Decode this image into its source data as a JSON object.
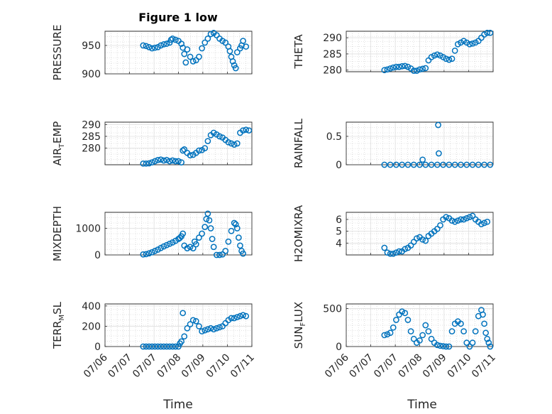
{
  "figure": {
    "title": "Figure 1 low",
    "xlabel": "Time"
  },
  "colors": {
    "marker": "#0072bd",
    "axis": "#262626",
    "grid": "#dfdfdf"
  },
  "chart_data": [
    {
      "type": "scatter",
      "ylabel": "PRESSURE",
      "xticks": [
        "07/06",
        "07/07",
        "07/07",
        "07/08",
        "07/09",
        "07/10",
        "07/11"
      ],
      "yticks": [
        900,
        950
      ],
      "ylim": [
        900,
        975
      ],
      "grid": true,
      "points": [
        [
          1.8,
          950
        ],
        [
          1.9,
          949
        ],
        [
          2.0,
          947
        ],
        [
          2.1,
          945
        ],
        [
          2.2,
          946
        ],
        [
          2.3,
          947
        ],
        [
          2.4,
          950
        ],
        [
          2.5,
          952
        ],
        [
          2.6,
          953
        ],
        [
          2.7,
          955
        ],
        [
          2.75,
          960
        ],
        [
          2.8,
          962
        ],
        [
          2.9,
          960
        ],
        [
          3.0,
          958
        ],
        [
          3.1,
          953
        ],
        [
          3.15,
          946
        ],
        [
          3.2,
          935
        ],
        [
          3.25,
          920
        ],
        [
          3.3,
          943
        ],
        [
          3.4,
          930
        ],
        [
          3.5,
          922
        ],
        [
          3.6,
          924
        ],
        [
          3.7,
          930
        ],
        [
          3.8,
          945
        ],
        [
          3.9,
          955
        ],
        [
          4.0,
          962
        ],
        [
          4.1,
          970
        ],
        [
          4.2,
          972
        ],
        [
          4.3,
          968
        ],
        [
          4.4,
          962
        ],
        [
          4.5,
          958
        ],
        [
          4.6,
          955
        ],
        [
          4.7,
          948
        ],
        [
          4.75,
          940
        ],
        [
          4.8,
          930
        ],
        [
          4.85,
          922
        ],
        [
          4.9,
          915
        ],
        [
          4.95,
          910
        ],
        [
          5.0,
          938
        ],
        [
          5.1,
          945
        ],
        [
          5.15,
          950
        ],
        [
          5.2,
          958
        ],
        [
          5.3,
          948
        ]
      ]
    },
    {
      "type": "scatter",
      "ylabel": "THETA",
      "xticks": [
        "07/06",
        "07/07",
        "07/07",
        "07/08",
        "07/09",
        "07/10",
        "07/11"
      ],
      "yticks": [
        280,
        285,
        290
      ],
      "ylim": [
        279.5,
        292
      ],
      "grid": true,
      "points": [
        [
          1.8,
          280
        ],
        [
          1.9,
          280.2
        ],
        [
          2.0,
          280.5
        ],
        [
          2.1,
          280.8
        ],
        [
          2.2,
          281
        ],
        [
          2.3,
          281
        ],
        [
          2.4,
          281.2
        ],
        [
          2.5,
          281.3
        ],
        [
          2.6,
          281
        ],
        [
          2.7,
          280.5
        ],
        [
          2.8,
          279.8
        ],
        [
          2.9,
          279.8
        ],
        [
          3.0,
          280.2
        ],
        [
          3.1,
          280.4
        ],
        [
          3.2,
          280.6
        ],
        [
          3.3,
          283
        ],
        [
          3.4,
          284
        ],
        [
          3.5,
          284.5
        ],
        [
          3.6,
          284.8
        ],
        [
          3.7,
          284.5
        ],
        [
          3.8,
          284
        ],
        [
          3.9,
          283.5
        ],
        [
          4.0,
          283.2
        ],
        [
          4.1,
          283.5
        ],
        [
          4.2,
          286
        ],
        [
          4.3,
          288
        ],
        [
          4.4,
          288.5
        ],
        [
          4.5,
          289
        ],
        [
          4.6,
          288.5
        ],
        [
          4.7,
          288
        ],
        [
          4.8,
          288.2
        ],
        [
          4.9,
          288.5
        ],
        [
          5.0,
          289
        ],
        [
          5.1,
          290
        ],
        [
          5.2,
          291
        ],
        [
          5.3,
          291.5
        ],
        [
          5.4,
          291.5
        ]
      ]
    },
    {
      "type": "scatter",
      "ylabel": "AIR_TEMP",
      "xticks": [
        "07/06",
        "07/07",
        "07/07",
        "07/08",
        "07/09",
        "07/10",
        "07/11"
      ],
      "yticks": [
        280,
        285,
        290
      ],
      "ylim": [
        273,
        291
      ],
      "grid": true,
      "points": [
        [
          1.8,
          273.5
        ],
        [
          1.9,
          273.5
        ],
        [
          2.0,
          273.6
        ],
        [
          2.1,
          274
        ],
        [
          2.2,
          274.5
        ],
        [
          2.3,
          275
        ],
        [
          2.4,
          275.2
        ],
        [
          2.5,
          274.8
        ],
        [
          2.6,
          275
        ],
        [
          2.7,
          274.5
        ],
        [
          2.8,
          274.8
        ],
        [
          2.9,
          274.5
        ],
        [
          3.0,
          274.5
        ],
        [
          3.1,
          274
        ],
        [
          3.15,
          279
        ],
        [
          3.2,
          279.5
        ],
        [
          3.3,
          278
        ],
        [
          3.4,
          277
        ],
        [
          3.5,
          277.2
        ],
        [
          3.6,
          278
        ],
        [
          3.7,
          279
        ],
        [
          3.8,
          279.2
        ],
        [
          3.9,
          280
        ],
        [
          4.0,
          283
        ],
        [
          4.1,
          285.5
        ],
        [
          4.2,
          286.5
        ],
        [
          4.3,
          285.8
        ],
        [
          4.4,
          285
        ],
        [
          4.5,
          284.5
        ],
        [
          4.6,
          283.5
        ],
        [
          4.7,
          282.5
        ],
        [
          4.8,
          282
        ],
        [
          4.9,
          281.5
        ],
        [
          5.0,
          282
        ],
        [
          5.1,
          286.5
        ],
        [
          5.2,
          287.5
        ],
        [
          5.3,
          287.8
        ],
        [
          5.4,
          287.5
        ]
      ]
    },
    {
      "type": "scatter",
      "ylabel": "RAINFALL",
      "xticks": [
        "07/06",
        "07/07",
        "07/07",
        "07/08",
        "07/09",
        "07/10",
        "07/11"
      ],
      "yticks": [
        0,
        0.5
      ],
      "ylim": [
        0,
        0.75
      ],
      "grid": true,
      "points": [
        [
          1.8,
          0
        ],
        [
          2.0,
          0
        ],
        [
          2.2,
          0
        ],
        [
          2.4,
          0
        ],
        [
          2.6,
          0
        ],
        [
          2.8,
          0
        ],
        [
          3.0,
          0
        ],
        [
          3.1,
          0.09
        ],
        [
          3.2,
          0
        ],
        [
          3.4,
          0
        ],
        [
          3.6,
          0
        ],
        [
          3.63,
          0.7
        ],
        [
          3.65,
          0.2
        ],
        [
          3.8,
          0
        ],
        [
          4.0,
          0
        ],
        [
          4.2,
          0
        ],
        [
          4.4,
          0
        ],
        [
          4.6,
          0
        ],
        [
          4.8,
          0
        ],
        [
          5.0,
          0
        ],
        [
          5.2,
          0
        ],
        [
          5.4,
          0
        ]
      ]
    },
    {
      "type": "scatter",
      "ylabel": "MIXDEPTH",
      "xticks": [
        "07/06",
        "07/07",
        "07/07",
        "07/08",
        "07/09",
        "07/10",
        "07/11"
      ],
      "yticks": [
        0,
        1000
      ],
      "ylim": [
        0,
        1600
      ],
      "grid": true,
      "points": [
        [
          1.8,
          20
        ],
        [
          1.9,
          30
        ],
        [
          2.0,
          60
        ],
        [
          2.1,
          100
        ],
        [
          2.2,
          150
        ],
        [
          2.3,
          200
        ],
        [
          2.4,
          260
        ],
        [
          2.5,
          320
        ],
        [
          2.6,
          370
        ],
        [
          2.7,
          420
        ],
        [
          2.8,
          470
        ],
        [
          2.9,
          530
        ],
        [
          3.0,
          600
        ],
        [
          3.05,
          640
        ],
        [
          3.1,
          700
        ],
        [
          3.15,
          800
        ],
        [
          3.2,
          350
        ],
        [
          3.3,
          250
        ],
        [
          3.4,
          300
        ],
        [
          3.5,
          250
        ],
        [
          3.55,
          500
        ],
        [
          3.6,
          400
        ],
        [
          3.7,
          650
        ],
        [
          3.8,
          800
        ],
        [
          3.9,
          1050
        ],
        [
          3.95,
          1350
        ],
        [
          4.0,
          1550
        ],
        [
          4.05,
          1300
        ],
        [
          4.1,
          1000
        ],
        [
          4.15,
          600
        ],
        [
          4.2,
          300
        ],
        [
          4.3,
          0
        ],
        [
          4.4,
          0
        ],
        [
          4.5,
          20
        ],
        [
          4.6,
          150
        ],
        [
          4.7,
          500
        ],
        [
          4.8,
          900
        ],
        [
          4.9,
          1200
        ],
        [
          4.95,
          1150
        ],
        [
          5.0,
          1000
        ],
        [
          5.05,
          650
        ],
        [
          5.1,
          350
        ],
        [
          5.15,
          150
        ],
        [
          5.2,
          50
        ]
      ]
    },
    {
      "type": "scatter",
      "ylabel": "H2OMIXRA",
      "xticks": [
        "07/06",
        "07/07",
        "07/07",
        "07/08",
        "07/09",
        "07/10",
        "07/11"
      ],
      "yticks": [
        4,
        5,
        6
      ],
      "ylim": [
        3,
        6.6
      ],
      "grid": true,
      "points": [
        [
          1.8,
          3.6
        ],
        [
          1.9,
          3.2
        ],
        [
          2.0,
          3.1
        ],
        [
          2.1,
          3.1
        ],
        [
          2.2,
          3.2
        ],
        [
          2.3,
          3.3
        ],
        [
          2.4,
          3.3
        ],
        [
          2.5,
          3.5
        ],
        [
          2.6,
          3.6
        ],
        [
          2.7,
          3.8
        ],
        [
          2.8,
          4.1
        ],
        [
          2.9,
          4.4
        ],
        [
          3.0,
          4.5
        ],
        [
          3.1,
          4.3
        ],
        [
          3.2,
          4.2
        ],
        [
          3.3,
          4.6
        ],
        [
          3.4,
          4.8
        ],
        [
          3.5,
          5.0
        ],
        [
          3.6,
          5.2
        ],
        [
          3.7,
          5.5
        ],
        [
          3.8,
          6.0
        ],
        [
          3.9,
          6.2
        ],
        [
          4.0,
          6.1
        ],
        [
          4.1,
          5.9
        ],
        [
          4.2,
          5.8
        ],
        [
          4.3,
          5.9
        ],
        [
          4.4,
          6.0
        ],
        [
          4.5,
          6.0
        ],
        [
          4.6,
          6.1
        ],
        [
          4.7,
          6.2
        ],
        [
          4.8,
          6.3
        ],
        [
          4.9,
          6.0
        ],
        [
          5.0,
          5.8
        ],
        [
          5.1,
          5.6
        ],
        [
          5.2,
          5.7
        ],
        [
          5.3,
          5.8
        ]
      ]
    },
    {
      "type": "scatter",
      "ylabel": "TERR_MSL",
      "xticks": [
        "07/06",
        "07/07",
        "07/07",
        "07/08",
        "07/09",
        "07/10",
        "07/11"
      ],
      "yticks": [
        0,
        200,
        400
      ],
      "ylim": [
        0,
        420
      ],
      "grid": true,
      "points": [
        [
          1.8,
          0
        ],
        [
          1.9,
          0
        ],
        [
          2.0,
          0
        ],
        [
          2.1,
          0
        ],
        [
          2.2,
          0
        ],
        [
          2.3,
          0
        ],
        [
          2.4,
          0
        ],
        [
          2.5,
          0
        ],
        [
          2.6,
          0
        ],
        [
          2.7,
          0
        ],
        [
          2.8,
          0
        ],
        [
          2.9,
          0
        ],
        [
          3.0,
          0
        ],
        [
          3.05,
          30
        ],
        [
          3.1,
          50
        ],
        [
          3.15,
          330
        ],
        [
          3.2,
          100
        ],
        [
          3.3,
          180
        ],
        [
          3.4,
          220
        ],
        [
          3.5,
          260
        ],
        [
          3.6,
          250
        ],
        [
          3.7,
          200
        ],
        [
          3.8,
          150
        ],
        [
          3.9,
          160
        ],
        [
          4.0,
          170
        ],
        [
          4.1,
          180
        ],
        [
          4.2,
          170
        ],
        [
          4.3,
          180
        ],
        [
          4.4,
          190
        ],
        [
          4.5,
          200
        ],
        [
          4.6,
          230
        ],
        [
          4.7,
          260
        ],
        [
          4.8,
          280
        ],
        [
          4.9,
          280
        ],
        [
          5.0,
          290
        ],
        [
          5.1,
          300
        ],
        [
          5.2,
          310
        ],
        [
          5.3,
          300
        ]
      ]
    },
    {
      "type": "scatter",
      "ylabel": "SUN_FLUX",
      "xticks": [
        "07/06",
        "07/07",
        "07/07",
        "07/08",
        "07/09",
        "07/10",
        "07/11"
      ],
      "yticks": [
        0,
        500
      ],
      "ylim": [
        0,
        560
      ],
      "grid": true,
      "points": [
        [
          1.8,
          150
        ],
        [
          1.9,
          160
        ],
        [
          2.0,
          180
        ],
        [
          2.1,
          250
        ],
        [
          2.2,
          350
        ],
        [
          2.3,
          420
        ],
        [
          2.4,
          460
        ],
        [
          2.5,
          440
        ],
        [
          2.6,
          350
        ],
        [
          2.7,
          200
        ],
        [
          2.8,
          100
        ],
        [
          2.9,
          50
        ],
        [
          3.0,
          80
        ],
        [
          3.1,
          150
        ],
        [
          3.2,
          280
        ],
        [
          3.3,
          200
        ],
        [
          3.4,
          100
        ],
        [
          3.5,
          50
        ],
        [
          3.6,
          20
        ],
        [
          3.7,
          10
        ],
        [
          3.8,
          5
        ],
        [
          3.9,
          0
        ],
        [
          4.0,
          0
        ],
        [
          4.1,
          200
        ],
        [
          4.2,
          300
        ],
        [
          4.3,
          330
        ],
        [
          4.4,
          300
        ],
        [
          4.5,
          200
        ],
        [
          4.6,
          50
        ],
        [
          4.7,
          0
        ],
        [
          4.8,
          50
        ],
        [
          4.9,
          200
        ],
        [
          5.0,
          400
        ],
        [
          5.1,
          480
        ],
        [
          5.15,
          420
        ],
        [
          5.2,
          300
        ],
        [
          5.25,
          180
        ],
        [
          5.3,
          100
        ],
        [
          5.35,
          50
        ],
        [
          5.4,
          0
        ]
      ]
    }
  ]
}
